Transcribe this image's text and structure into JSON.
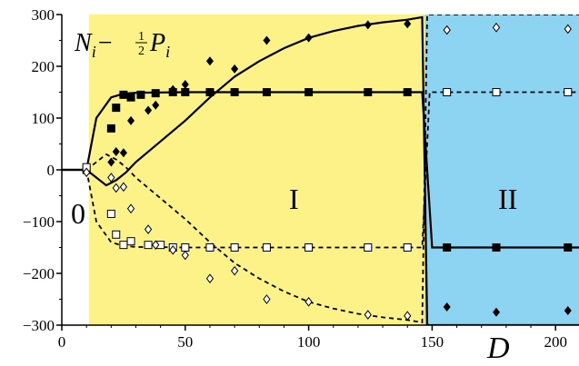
{
  "chart_data": {
    "type": "scatter",
    "title": "",
    "ylabel_main": "N",
    "ylabel_sub1": "i",
    "ylabel_mid": "−",
    "ylabel_frac_num": "1",
    "ylabel_frac_den": "2",
    "ylabel_p": "P",
    "ylabel_sub2": "i",
    "xlabel": "D",
    "xlim": [
      0,
      210
    ],
    "ylim": [
      -300,
      300
    ],
    "x_ticks": [
      0,
      50,
      100,
      150,
      200
    ],
    "y_ticks": [
      -300,
      -200,
      -100,
      0,
      100,
      200,
      300
    ],
    "x_tick_labels": [
      "0",
      "50",
      "100",
      "150",
      "200"
    ],
    "y_tick_labels": [
      "−300",
      "−200",
      "−100",
      "0",
      "100",
      "200",
      "300"
    ],
    "grid": false,
    "regions": [
      {
        "label": "0",
        "x_range": [
          0,
          11
        ],
        "color": "#ffffff"
      },
      {
        "label": "I",
        "x_range": [
          11,
          147
        ],
        "color": "#fcf287"
      },
      {
        "label": "II",
        "x_range": [
          147,
          210
        ],
        "color": "#8dd3f2"
      }
    ],
    "series": [
      {
        "marker": "filled-square",
        "points": [
          [
            10,
            0
          ],
          [
            20,
            80
          ],
          [
            22,
            120
          ],
          [
            25,
            145
          ],
          [
            28,
            140
          ],
          [
            32,
            145
          ],
          [
            38,
            148
          ],
          [
            45,
            150
          ],
          [
            50,
            150
          ],
          [
            60,
            150
          ],
          [
            70,
            150
          ],
          [
            83,
            150
          ],
          [
            100,
            150
          ],
          [
            124,
            150
          ],
          [
            140,
            150
          ],
          [
            156,
            -150
          ],
          [
            176,
            -150
          ],
          [
            205,
            -150
          ]
        ]
      },
      {
        "marker": "filled-diamond",
        "points": [
          [
            10,
            0
          ],
          [
            20,
            15
          ],
          [
            22,
            35
          ],
          [
            25,
            33
          ],
          [
            28,
            95
          ],
          [
            35,
            115
          ],
          [
            38,
            125
          ],
          [
            45,
            155
          ],
          [
            50,
            165
          ],
          [
            60,
            210
          ],
          [
            70,
            195
          ],
          [
            83,
            250
          ],
          [
            100,
            255
          ],
          [
            124,
            280
          ],
          [
            140,
            282
          ],
          [
            156,
            -265
          ],
          [
            176,
            -275
          ],
          [
            205,
            -272
          ]
        ]
      },
      {
        "marker": "open-square",
        "points": [
          [
            10,
            5
          ],
          [
            20,
            -85
          ],
          [
            22,
            -125
          ],
          [
            25,
            -145
          ],
          [
            28,
            -138
          ],
          [
            35,
            -145
          ],
          [
            40,
            -145
          ],
          [
            45,
            -150
          ],
          [
            50,
            -150
          ],
          [
            60,
            -150
          ],
          [
            70,
            -150
          ],
          [
            83,
            -150
          ],
          [
            100,
            -150
          ],
          [
            124,
            -150
          ],
          [
            140,
            -150
          ],
          [
            156,
            150
          ],
          [
            176,
            150
          ],
          [
            205,
            150
          ]
        ]
      },
      {
        "marker": "open-diamond",
        "points": [
          [
            10,
            -5
          ],
          [
            20,
            -15
          ],
          [
            22,
            -35
          ],
          [
            25,
            -33
          ],
          [
            28,
            -75
          ],
          [
            35,
            -115
          ],
          [
            38,
            -145
          ],
          [
            45,
            -155
          ],
          [
            50,
            -165
          ],
          [
            60,
            -210
          ],
          [
            70,
            -195
          ],
          [
            83,
            -250
          ],
          [
            100,
            -255
          ],
          [
            124,
            -280
          ],
          [
            140,
            -282
          ],
          [
            156,
            270
          ],
          [
            176,
            275
          ],
          [
            205,
            272
          ]
        ]
      }
    ],
    "lines": [
      {
        "style": "solid",
        "points": [
          [
            0,
            0
          ],
          [
            10,
            0
          ],
          [
            14,
            100
          ],
          [
            20,
            140
          ],
          [
            25,
            147
          ],
          [
            30,
            149
          ],
          [
            50,
            150
          ],
          [
            140,
            150
          ],
          [
            146,
            150
          ],
          [
            150,
            -150
          ],
          [
            210,
            -150
          ]
        ]
      },
      {
        "style": "solid",
        "points": [
          [
            0,
            0
          ],
          [
            10,
            0
          ],
          [
            18,
            -30
          ],
          [
            22,
            -20
          ],
          [
            26,
            -5
          ],
          [
            30,
            15
          ],
          [
            40,
            55
          ],
          [
            50,
            95
          ],
          [
            60,
            140
          ],
          [
            70,
            180
          ],
          [
            80,
            210
          ],
          [
            90,
            235
          ],
          [
            100,
            255
          ],
          [
            110,
            268
          ],
          [
            120,
            278
          ],
          [
            130,
            285
          ],
          [
            140,
            290
          ],
          [
            146,
            295
          ],
          [
            148,
            -300
          ],
          [
            210,
            -300
          ]
        ]
      },
      {
        "style": "dashed",
        "points": [
          [
            0,
            0
          ],
          [
            10,
            0
          ],
          [
            14,
            -100
          ],
          [
            20,
            -140
          ],
          [
            25,
            -147
          ],
          [
            30,
            -149
          ],
          [
            50,
            -150
          ],
          [
            140,
            -150
          ],
          [
            146,
            -150
          ],
          [
            149,
            150
          ],
          [
            210,
            150
          ]
        ]
      },
      {
        "style": "dashed",
        "points": [
          [
            0,
            0
          ],
          [
            10,
            0
          ],
          [
            18,
            30
          ],
          [
            22,
            20
          ],
          [
            26,
            5
          ],
          [
            30,
            -15
          ],
          [
            40,
            -55
          ],
          [
            50,
            -95
          ],
          [
            60,
            -140
          ],
          [
            70,
            -180
          ],
          [
            80,
            -210
          ],
          [
            90,
            -235
          ],
          [
            100,
            -255
          ],
          [
            110,
            -268
          ],
          [
            120,
            -278
          ],
          [
            130,
            -285
          ],
          [
            140,
            -290
          ],
          [
            146,
            -295
          ],
          [
            148,
            300
          ],
          [
            210,
            300
          ]
        ]
      }
    ]
  }
}
